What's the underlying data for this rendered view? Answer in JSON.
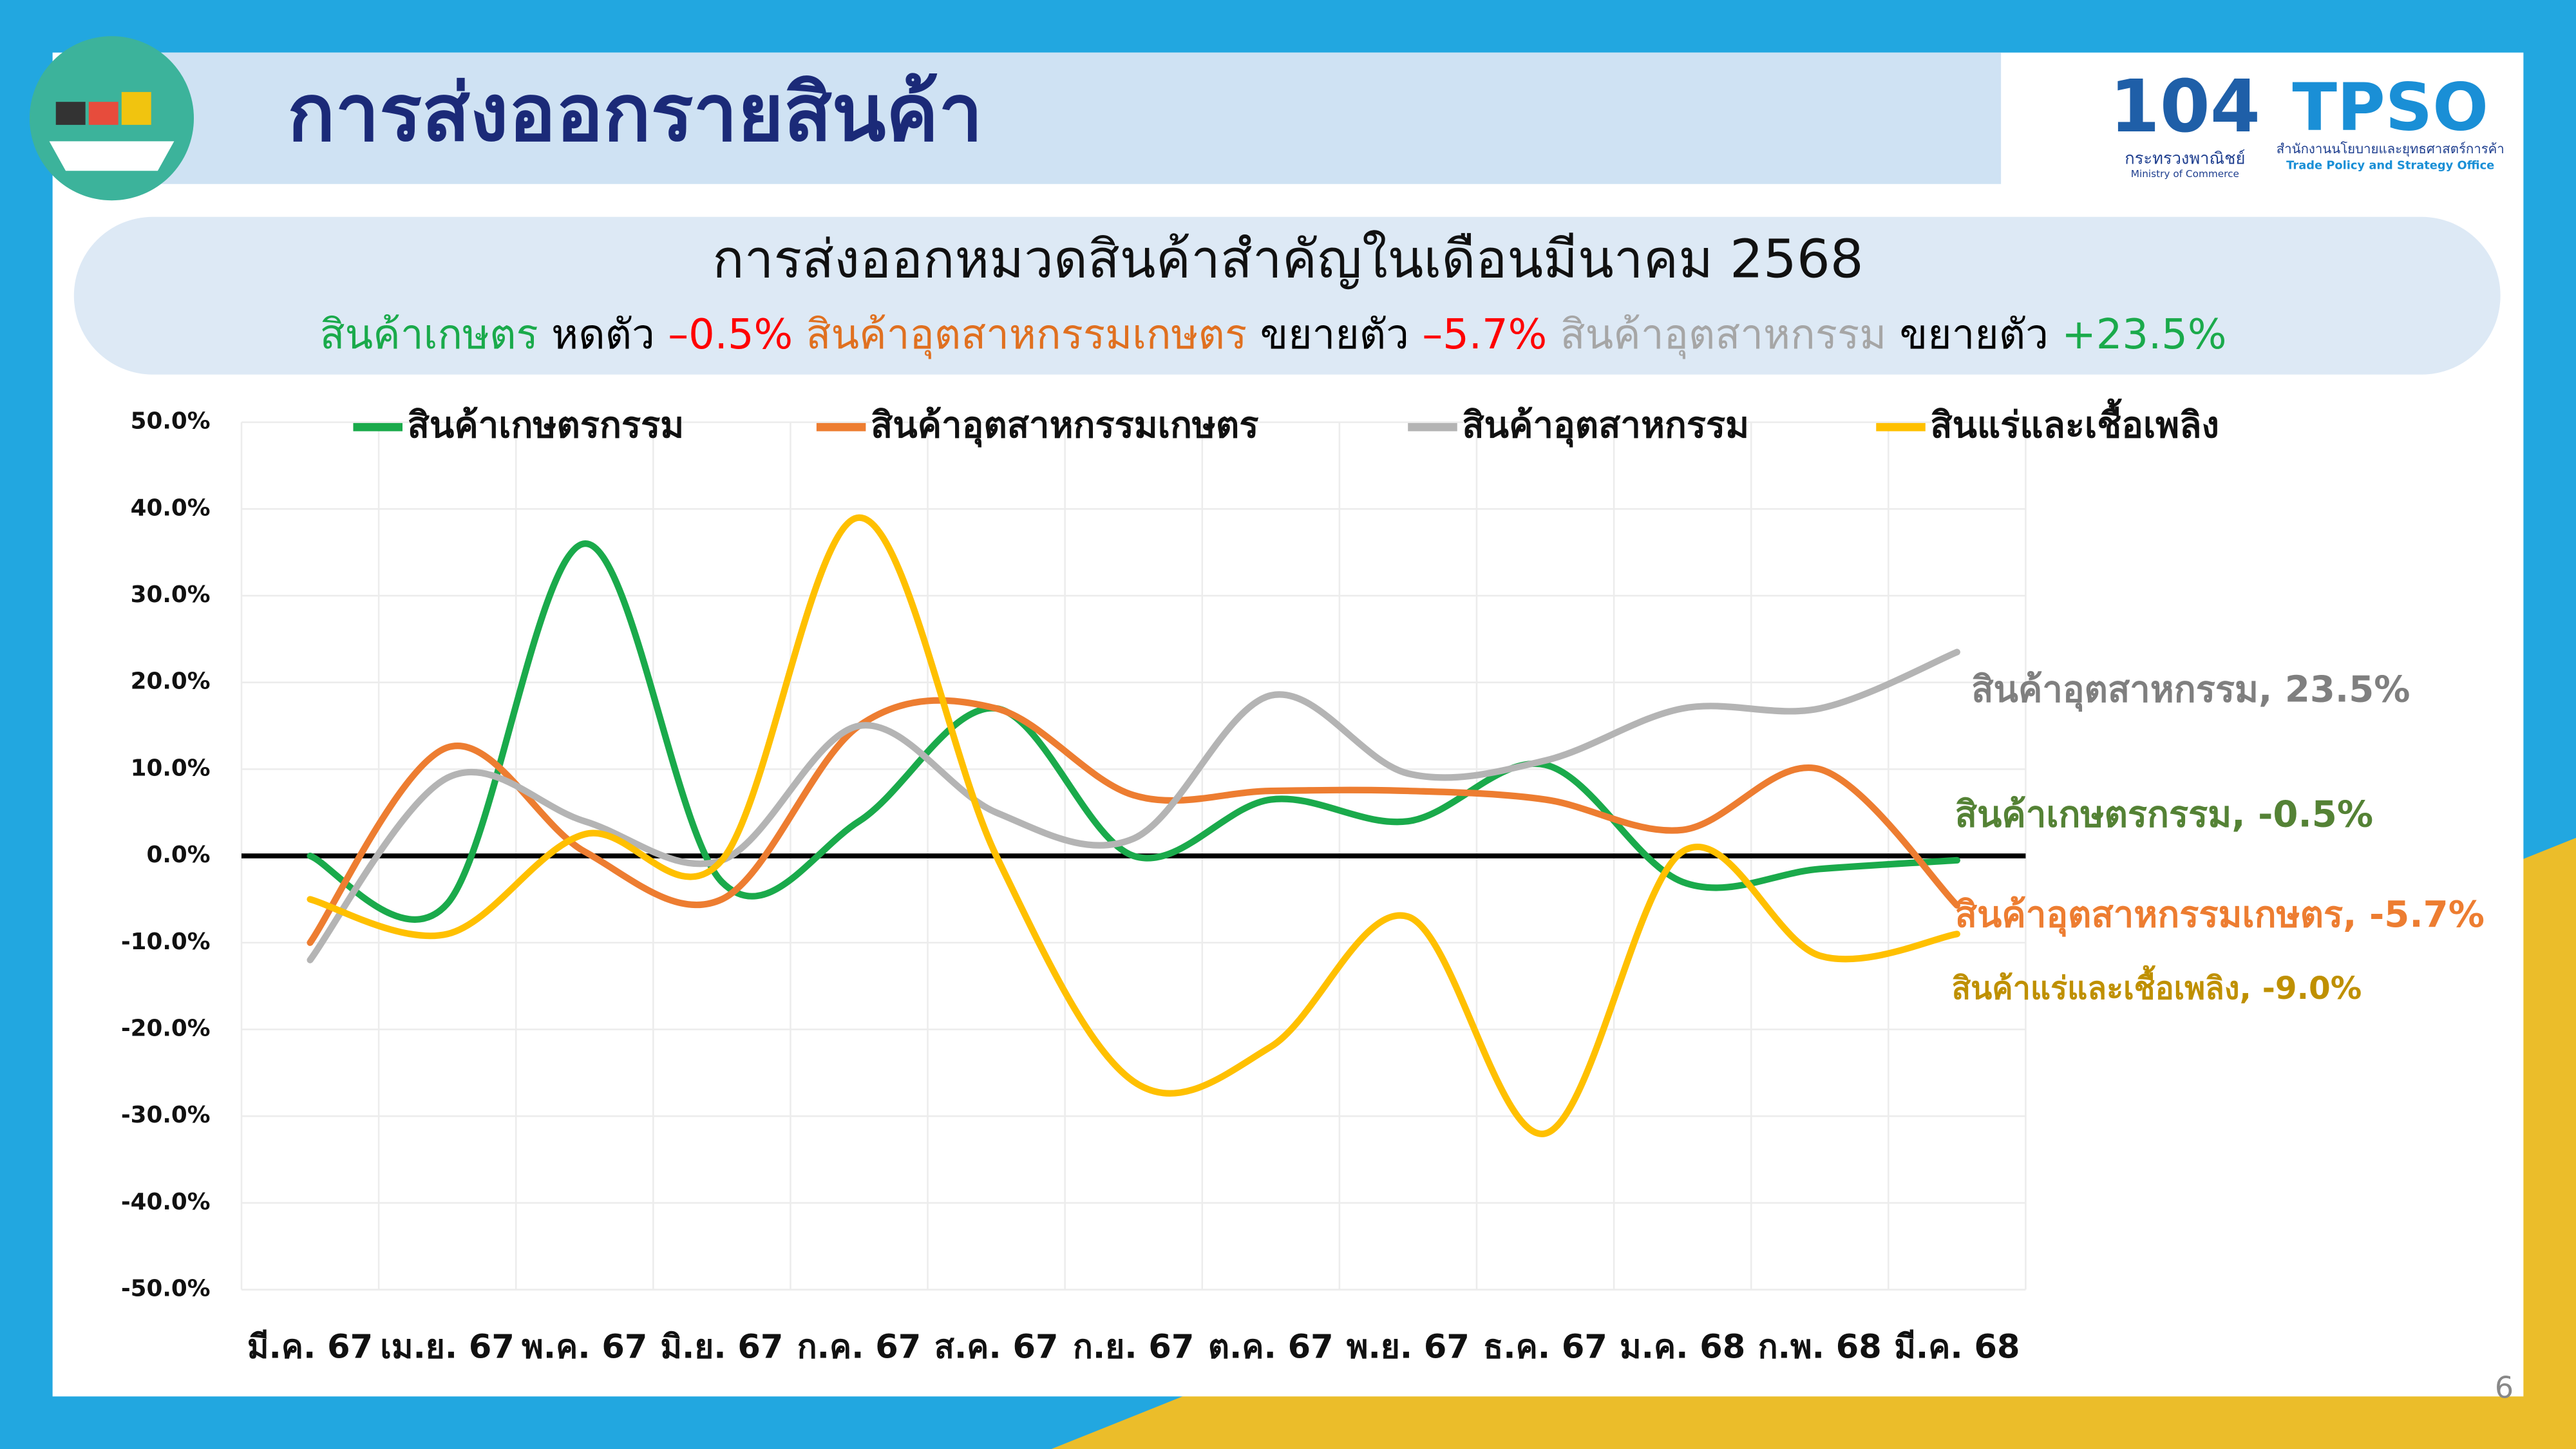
{
  "header": {
    "title": "การส่งออกรายสินค้า",
    "logo_number": "104",
    "logo_ministry_th": "กระทรวงพาณิชย์",
    "logo_ministry_en": "Ministry of Commerce",
    "logo_tpso": "TPSO",
    "logo_tpso_th": "สำนักงานนโยบายและยุทธศาสตร์การค้า",
    "logo_tpso_en": "Trade Policy and Strategy Office"
  },
  "summary": {
    "title": "การส่งออกหมวดสินค้าสำคัญในเดือนมีนาคม 2568",
    "segments": [
      {
        "text": "สินค้าเกษตร",
        "color": "#1aaa4b"
      },
      {
        "text": "หดตัว",
        "color": "#000000"
      },
      {
        "text": "–0.5%",
        "color": "#ff0000"
      },
      {
        "text": "สินค้าอุตสาหกรรมเกษตร",
        "color": "#e07020"
      },
      {
        "text": "ขยายตัว",
        "color": "#000000"
      },
      {
        "text": "–5.7%",
        "color": "#ff0000"
      },
      {
        "text": "สินค้าอุตสาหกรรม",
        "color": "#a6a6a6"
      },
      {
        "text": "ขยายตัว",
        "color": "#000000"
      },
      {
        "text": "+23.5%",
        "color": "#1aaa4b"
      }
    ]
  },
  "page_number": "6",
  "chart_data": {
    "type": "line",
    "smooth": true,
    "grid": true,
    "categories": [
      "มี.ค. 67",
      "เม.ย. 67",
      "พ.ค. 67",
      "มิ.ย. 67",
      "ก.ค. 67",
      "ส.ค. 67",
      "ก.ย. 67",
      "ต.ค. 67",
      "พ.ย. 67",
      "ธ.ค. 67",
      "ม.ค. 68",
      "ก.พ. 68",
      "มี.ค. 68"
    ],
    "ylim": [
      -50,
      50
    ],
    "yticks": [
      {
        "value": -50,
        "label": "-50.0%"
      },
      {
        "value": -40,
        "label": "-40.0%"
      },
      {
        "value": -30,
        "label": "-30.0%"
      },
      {
        "value": -20,
        "label": "-20.0%"
      },
      {
        "value": -10,
        "label": "-10.0%"
      },
      {
        "value": 0,
        "label": "0.0%"
      },
      {
        "value": 10,
        "label": "10.0%"
      },
      {
        "value": 20,
        "label": "20.0%"
      },
      {
        "value": 30,
        "label": "30.0%"
      },
      {
        "value": 40,
        "label": "40.0%"
      },
      {
        "value": 50,
        "label": "50.0%"
      }
    ],
    "series": [
      {
        "name": "สินค้าเกษตรกรรม",
        "color": "#1aaa4b",
        "values": [
          0,
          -5.5,
          36,
          -3,
          4,
          17,
          0,
          6.5,
          4,
          10.5,
          -3,
          -1.5,
          -0.5
        ]
      },
      {
        "name": "สินค้าอุตสาหกรรมเกษตร",
        "color": "#ed7d31",
        "values": [
          -10,
          12.5,
          0.5,
          -5,
          15,
          17,
          7,
          7.5,
          7.5,
          6.5,
          3,
          10,
          -5.7
        ]
      },
      {
        "name": "สินค้าอุตสาหกรรม",
        "color": "#b4b4b4",
        "values": [
          -12,
          9,
          4,
          -0.5,
          15,
          5,
          2,
          18.5,
          9.5,
          11,
          17,
          17,
          23.5
        ]
      },
      {
        "name": "สินแร่และเชื้อเพลิง",
        "color": "#ffc000",
        "values": [
          -5,
          -9,
          2.5,
          -0.5,
          39,
          0,
          -26,
          -22,
          -7,
          -32,
          0.5,
          -11.5,
          -9.0
        ]
      }
    ],
    "annotations": [
      {
        "text": "สินค้าอุตสาหกรรม, 23.5%",
        "color": "#7f7f7f"
      },
      {
        "text": "สินค้าเกษตรกรรม, -0.5%",
        "color": "#548235"
      },
      {
        "text": "สินค้าอุตสาหกรรมเกษตร, -5.7%",
        "color": "#ed7d31"
      },
      {
        "text": "สินค้าแร่และเชื้อเพลิง, -9.0%",
        "color": "#bf9000"
      }
    ]
  }
}
